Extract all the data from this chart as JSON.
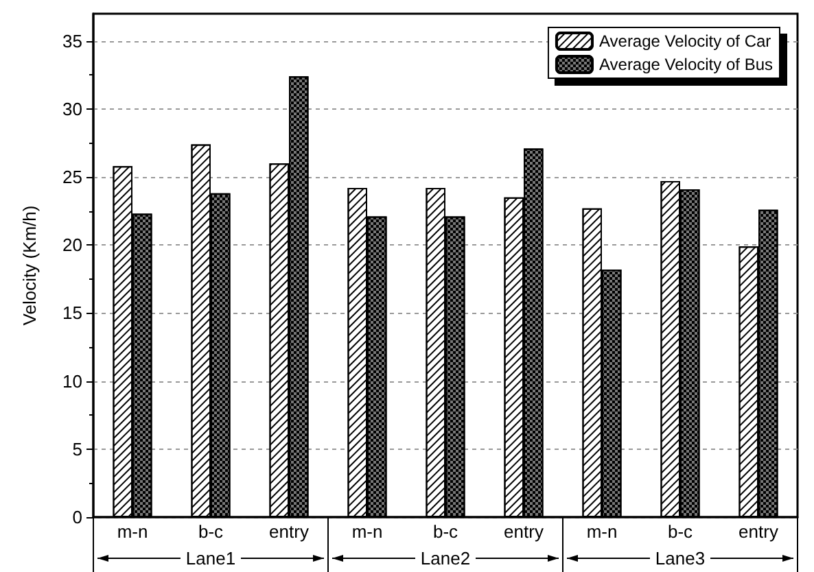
{
  "chart_data": {
    "type": "bar",
    "ylabel": "Velocity (Km/h)",
    "categories": [
      "m-n",
      "b-c",
      "entry",
      "m-n",
      "b-c",
      "entry",
      "m-n",
      "b-c",
      "entry"
    ],
    "series": [
      {
        "name": "Average Velocity of Car",
        "color": "#ffffff",
        "values": [
          25.8,
          27.4,
          26.0,
          24.2,
          24.2,
          23.5,
          22.7,
          24.7,
          19.9
        ]
      },
      {
        "name": "Average Velocity of Bus",
        "color": "#777777",
        "values": [
          22.3,
          23.8,
          32.4,
          22.1,
          22.1,
          27.1,
          18.2,
          24.1,
          22.6
        ]
      }
    ],
    "annotations": [
      "Lane1",
      "Lane2",
      "Lane3"
    ],
    "ylim": [
      0,
      37
    ],
    "yticks": [
      0,
      5,
      10,
      15,
      20,
      25,
      30,
      35
    ],
    "grid": "y",
    "legend": "top right"
  }
}
